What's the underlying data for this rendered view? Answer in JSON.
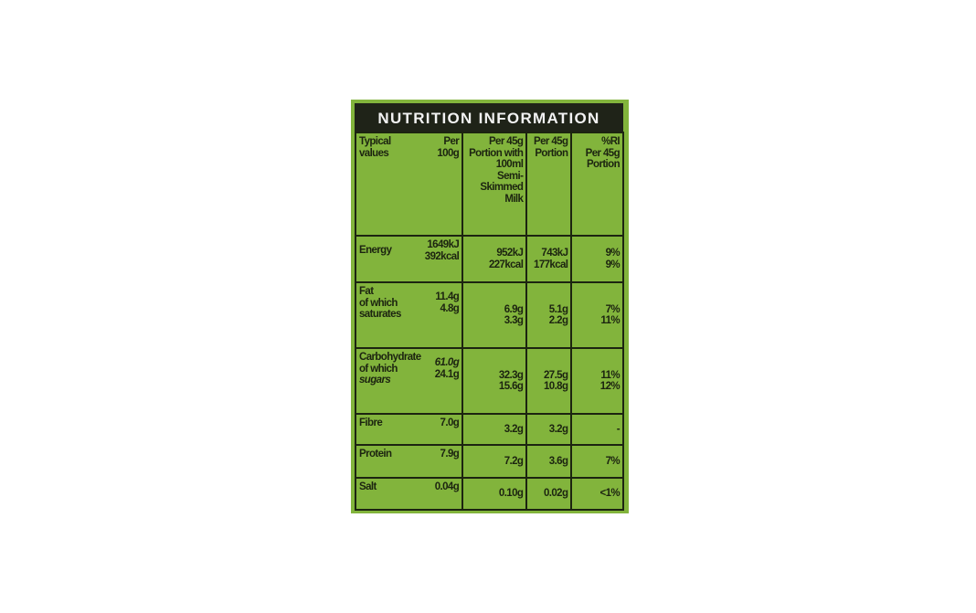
{
  "title": "NUTRITION INFORMATION",
  "headers": {
    "typical": "Typical values",
    "per100": "Per 100g",
    "with_milk": [
      "Per 45g",
      "Portion with",
      "100ml",
      "Semi-",
      "Skimmed",
      "Milk"
    ],
    "portion": [
      "Per 45g",
      "Portion"
    ],
    "ri": [
      "%RI",
      "Per 45g",
      "Portion"
    ]
  },
  "rows": {
    "energy": {
      "label": [
        "Energy"
      ],
      "per100": [
        "1649kJ",
        "392kcal"
      ],
      "milk": [
        "952kJ",
        "227kcal"
      ],
      "portion": [
        "743kJ",
        "177kcal"
      ],
      "ri": [
        "9%",
        "9%"
      ]
    },
    "fat": {
      "label": [
        "Fat",
        "of which",
        "saturates"
      ],
      "per100": [
        "11.4g",
        "4.8g"
      ],
      "milk": [
        "6.9g",
        "3.3g"
      ],
      "portion": [
        "5.1g",
        "2.2g"
      ],
      "ri": [
        "7%",
        "11%"
      ]
    },
    "carb": {
      "label": [
        "Carbohydrate",
        "of which",
        "sugars"
      ],
      "per100": [
        "61.0g",
        "24.1g"
      ],
      "milk": [
        "32.3g",
        "15.6g"
      ],
      "portion": [
        "27.5g",
        "10.8g"
      ],
      "ri": [
        "11%",
        "12%"
      ]
    },
    "fibre": {
      "label": [
        "Fibre"
      ],
      "per100": [
        "7.0g"
      ],
      "milk": [
        "3.2g"
      ],
      "portion": [
        "3.2g"
      ],
      "ri": [
        "-"
      ]
    },
    "protein": {
      "label": [
        "Protein"
      ],
      "per100": [
        "7.9g"
      ],
      "milk": [
        "7.2g"
      ],
      "portion": [
        "3.6g"
      ],
      "ri": [
        "7%"
      ]
    },
    "salt": {
      "label": [
        "Salt"
      ],
      "per100": [
        "0.04g"
      ],
      "milk": [
        "0.10g"
      ],
      "portion": [
        "0.02g"
      ],
      "ri": [
        "<1%"
      ]
    }
  },
  "colors": {
    "label_background": "#82b43c",
    "title_band": "#1f2318",
    "ink": "#1c2410"
  }
}
